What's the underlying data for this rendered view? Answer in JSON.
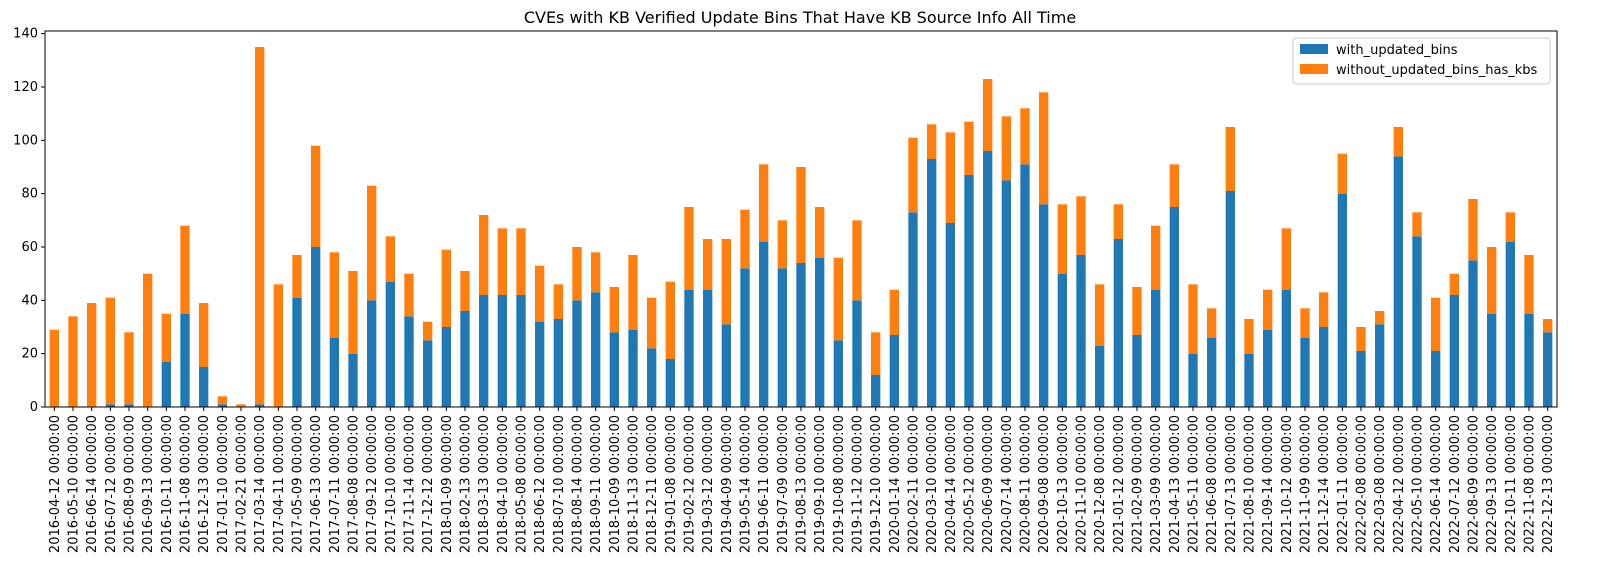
{
  "chart_data": {
    "type": "bar",
    "stacked": true,
    "title": "CVEs with KB Verified Update Bins That Have KB Source Info All Time",
    "xlabel": "",
    "ylabel": "",
    "ylim": [
      0,
      141
    ],
    "yticks": [
      0,
      20,
      40,
      60,
      80,
      100,
      120,
      140
    ],
    "grid": false,
    "legend_position": "top-right",
    "categories": [
      "2016-04-12 00:00:00",
      "2016-05-10 00:00:00",
      "2016-06-14 00:00:00",
      "2016-07-12 00:00:00",
      "2016-08-09 00:00:00",
      "2016-09-13 00:00:00",
      "2016-10-11 00:00:00",
      "2016-11-08 00:00:00",
      "2016-12-13 00:00:00",
      "2017-01-10 00:00:00",
      "2017-02-21 00:00:00",
      "2017-03-14 00:00:00",
      "2017-04-11 00:00:00",
      "2017-05-09 00:00:00",
      "2017-06-13 00:00:00",
      "2017-07-11 00:00:00",
      "2017-08-08 00:00:00",
      "2017-09-12 00:00:00",
      "2017-10-10 00:00:00",
      "2017-11-14 00:00:00",
      "2017-12-12 00:00:00",
      "2018-01-09 00:00:00",
      "2018-02-13 00:00:00",
      "2018-03-13 00:00:00",
      "2018-04-10 00:00:00",
      "2018-05-08 00:00:00",
      "2018-06-12 00:00:00",
      "2018-07-10 00:00:00",
      "2018-08-14 00:00:00",
      "2018-09-11 00:00:00",
      "2018-10-09 00:00:00",
      "2018-11-13 00:00:00",
      "2018-12-11 00:00:00",
      "2019-01-08 00:00:00",
      "2019-02-12 00:00:00",
      "2019-03-12 00:00:00",
      "2019-04-09 00:00:00",
      "2019-05-14 00:00:00",
      "2019-06-11 00:00:00",
      "2019-07-09 00:00:00",
      "2019-08-13 00:00:00",
      "2019-09-10 00:00:00",
      "2019-10-08 00:00:00",
      "2019-11-12 00:00:00",
      "2019-12-10 00:00:00",
      "2020-01-14 00:00:00",
      "2020-02-11 00:00:00",
      "2020-03-10 00:00:00",
      "2020-04-14 00:00:00",
      "2020-05-12 00:00:00",
      "2020-06-09 00:00:00",
      "2020-07-14 00:00:00",
      "2020-08-11 00:00:00",
      "2020-09-08 00:00:00",
      "2020-10-13 00:00:00",
      "2020-11-10 00:00:00",
      "2020-12-08 00:00:00",
      "2021-01-12 00:00:00",
      "2021-02-09 00:00:00",
      "2021-03-09 00:00:00",
      "2021-04-13 00:00:00",
      "2021-05-11 00:00:00",
      "2021-06-08 00:00:00",
      "2021-07-13 00:00:00",
      "2021-08-10 00:00:00",
      "2021-09-14 00:00:00",
      "2021-10-12 00:00:00",
      "2021-11-09 00:00:00",
      "2021-12-14 00:00:00",
      "2022-01-11 00:00:00",
      "2022-02-08 00:00:00",
      "2022-03-08 00:00:00",
      "2022-04-12 00:00:00",
      "2022-05-10 00:00:00",
      "2022-06-14 00:00:00",
      "2022-07-12 00:00:00",
      "2022-08-09 00:00:00",
      "2022-09-13 00:00:00",
      "2022-10-11 00:00:00",
      "2022-11-08 00:00:00",
      "2022-12-13 00:00:00"
    ],
    "series": [
      {
        "name": "with_updated_bins",
        "color": "#1f77b4",
        "values": [
          0,
          0,
          0,
          1,
          1,
          0,
          17,
          35,
          15,
          1,
          0,
          1,
          0,
          41,
          60,
          26,
          20,
          40,
          47,
          34,
          25,
          30,
          36,
          42,
          42,
          42,
          32,
          33,
          40,
          43,
          28,
          29,
          22,
          18,
          44,
          44,
          31,
          52,
          62,
          52,
          54,
          56,
          25,
          40,
          12,
          27,
          73,
          93,
          69,
          87,
          96,
          85,
          91,
          76,
          50,
          57,
          23,
          63,
          27,
          44,
          75,
          20,
          26,
          81,
          20,
          29,
          44,
          26,
          30,
          80,
          21,
          31,
          94,
          64,
          21,
          42,
          55,
          35,
          62,
          35,
          28
        ]
      },
      {
        "name": "without_updated_bins_has_kbs",
        "color": "#ff7f0e",
        "values": [
          29,
          34,
          39,
          40,
          27,
          50,
          18,
          33,
          24,
          3,
          1,
          134,
          46,
          16,
          38,
          32,
          31,
          43,
          17,
          16,
          7,
          29,
          15,
          30,
          25,
          25,
          21,
          13,
          20,
          15,
          17,
          28,
          19,
          29,
          31,
          19,
          32,
          22,
          29,
          18,
          36,
          19,
          31,
          30,
          16,
          17,
          28,
          13,
          34,
          20,
          27,
          24,
          21,
          42,
          26,
          22,
          23,
          13,
          18,
          24,
          16,
          26,
          11,
          24,
          13,
          15,
          23,
          11,
          13,
          15,
          9,
          5,
          11,
          9,
          20,
          8,
          23,
          25,
          11,
          22,
          5
        ]
      }
    ]
  }
}
